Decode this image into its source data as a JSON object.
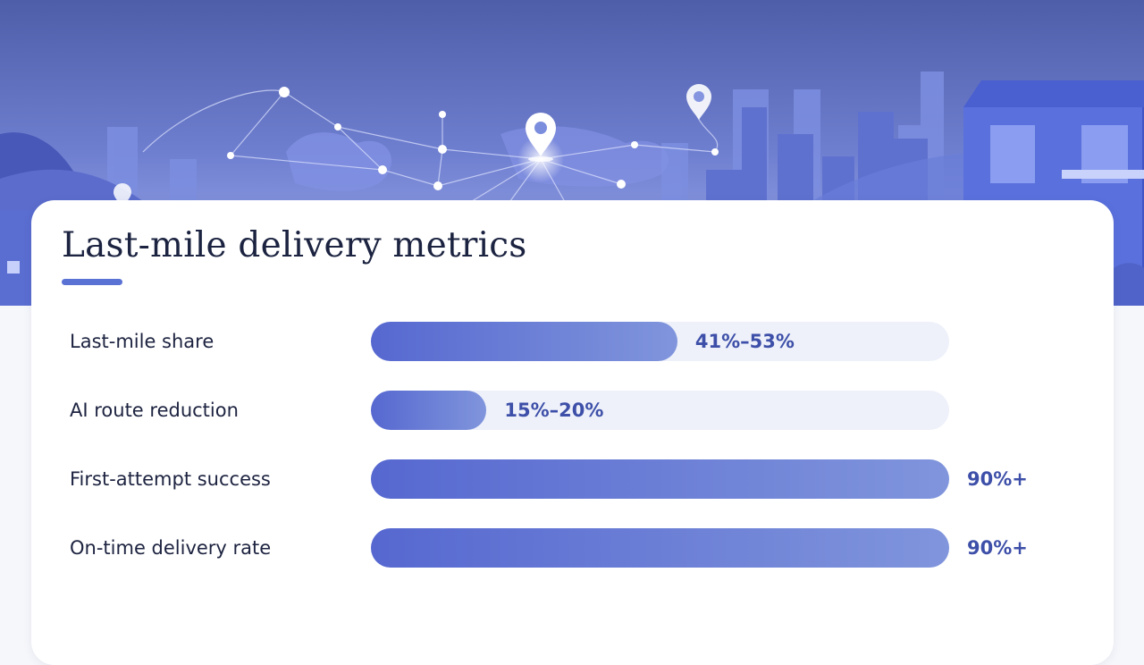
{
  "theme": {
    "accent": "#5a72d4",
    "bar_start": "#5668d0",
    "bar_end": "#8095dc",
    "track": "#eef1fa",
    "value_color": "#3d4fa8"
  },
  "chart_data": {
    "type": "bar",
    "orientation": "horizontal",
    "title": "Last-mile delivery metrics",
    "xlim": [
      0,
      100
    ],
    "categories": [
      "Last-mile share",
      "AI route reduction",
      "First-attempt success",
      "On-time delivery rate"
    ],
    "values": [
      53,
      20,
      100,
      100
    ],
    "value_labels": [
      "41%–53%",
      "15%–20%",
      "90%+",
      "90%+"
    ],
    "grid": false,
    "legend": "none"
  }
}
